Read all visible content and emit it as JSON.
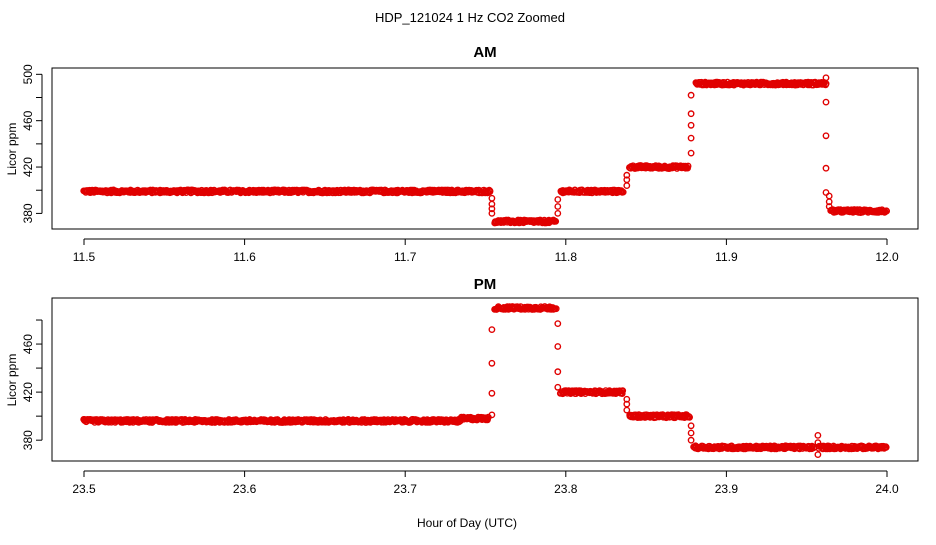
{
  "main_title": "HDP_121024  1 Hz CO2 Zoomed",
  "xlabel": "Hour of Day (UTC)",
  "colors": {
    "points": "#e00000",
    "axes": "#000000"
  },
  "chart_data": [
    {
      "type": "scatter",
      "title": "AM",
      "ylabel": "Licor ppm",
      "xlim": [
        11.5,
        12.0
      ],
      "ylim": [
        370,
        502
      ],
      "x_ticks": [
        "11.5",
        "11.6",
        "11.7",
        "11.8",
        "11.9",
        "12.0"
      ],
      "y_ticks": [
        "380",
        "420",
        "460",
        "500"
      ],
      "marker": "open-circle",
      "segments": [
        {
          "x": [
            11.5,
            11.753
          ],
          "y": 399
        },
        {
          "x": [
            11.756,
            11.794
          ],
          "y": 373
        },
        {
          "x": [
            11.797,
            11.836
          ],
          "y": 399
        },
        {
          "x": [
            11.84,
            11.876
          ],
          "y": 420
        },
        {
          "x": [
            11.881,
            11.962
          ],
          "y": 492
        },
        {
          "x": [
            11.965,
            12.0
          ],
          "y": 382
        }
      ],
      "transitions": [
        {
          "x": 11.754,
          "y": [
            380,
            384,
            388,
            393
          ]
        },
        {
          "x": 11.795,
          "y": [
            380,
            386,
            392
          ]
        },
        {
          "x": 11.838,
          "y": [
            404,
            409,
            413
          ]
        },
        {
          "x": 11.878,
          "y": [
            432,
            445,
            456,
            466,
            482
          ]
        },
        {
          "x": 11.962,
          "y": [
            497,
            476,
            447,
            419,
            398
          ]
        },
        {
          "x": 11.964,
          "y": [
            395,
            390,
            386
          ]
        }
      ]
    },
    {
      "type": "scatter",
      "title": "PM",
      "ylabel": "Licor ppm",
      "xlim": [
        23.5,
        24.0
      ],
      "ylim": [
        366,
        495
      ],
      "x_ticks": [
        "23.5",
        "23.6",
        "23.7",
        "23.8",
        "23.9",
        "24.0"
      ],
      "y_ticks": [
        "380",
        "420",
        "460"
      ],
      "marker": "open-circle",
      "segments": [
        {
          "x": [
            23.5,
            23.735
          ],
          "y": 396
        },
        {
          "x": [
            23.735,
            23.752
          ],
          "y": 398
        },
        {
          "x": [
            23.756,
            23.794
          ],
          "y": 490
        },
        {
          "x": [
            23.797,
            23.836
          ],
          "y": 420
        },
        {
          "x": [
            23.84,
            23.877
          ],
          "y": 400
        },
        {
          "x": [
            23.88,
            23.955
          ],
          "y": 374
        },
        {
          "x": [
            23.958,
            24.0
          ],
          "y": 374
        }
      ],
      "transitions": [
        {
          "x": 23.754,
          "y": [
            401,
            419,
            444,
            472
          ]
        },
        {
          "x": 23.795,
          "y": [
            477,
            458,
            437,
            424
          ]
        },
        {
          "x": 23.838,
          "y": [
            405,
            410,
            414
          ]
        },
        {
          "x": 23.878,
          "y": [
            380,
            386,
            392
          ]
        },
        {
          "x": 23.957,
          "y": [
            384,
            368,
            378
          ]
        }
      ]
    }
  ]
}
